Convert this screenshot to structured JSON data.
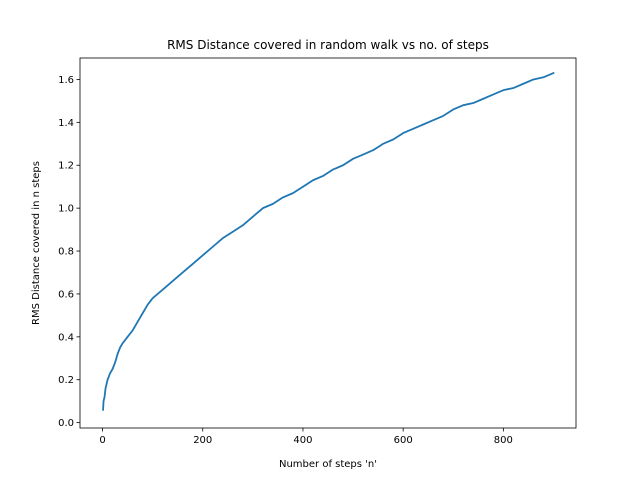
{
  "chart_data": {
    "type": "line",
    "title": "RMS Distance covered in random walk vs no. of steps",
    "xlabel": "Number of steps 'n'",
    "ylabel": "RMS Distance covered in n steps",
    "xlim": [
      -45,
      945
    ],
    "ylim": [
      -0.025,
      1.7
    ],
    "xticks": [
      0,
      200,
      400,
      600,
      800
    ],
    "xtick_labels": [
      "0",
      "200",
      "400",
      "600",
      "800"
    ],
    "yticks": [
      0.0,
      0.2,
      0.4,
      0.6,
      0.8,
      1.0,
      1.2,
      1.4,
      1.6
    ],
    "ytick_labels": [
      "0.0",
      "0.2",
      "0.4",
      "0.6",
      "0.8",
      "1.0",
      "1.2",
      "1.4",
      "1.6"
    ],
    "grid": false,
    "series": [
      {
        "color": "#1f77b4",
        "x": [
          1,
          2,
          4,
          6,
          10,
          15,
          20,
          25,
          30,
          35,
          40,
          50,
          60,
          70,
          80,
          90,
          100,
          120,
          140,
          160,
          180,
          200,
          220,
          240,
          260,
          280,
          300,
          320,
          340,
          360,
          380,
          400,
          420,
          440,
          460,
          480,
          500,
          520,
          540,
          560,
          580,
          600,
          620,
          640,
          660,
          680,
          700,
          720,
          740,
          760,
          780,
          800,
          820,
          840,
          860,
          880,
          900
        ],
        "y": [
          0.06,
          0.1,
          0.12,
          0.16,
          0.2,
          0.23,
          0.25,
          0.28,
          0.32,
          0.35,
          0.37,
          0.4,
          0.43,
          0.47,
          0.51,
          0.55,
          0.58,
          0.62,
          0.66,
          0.7,
          0.74,
          0.78,
          0.82,
          0.86,
          0.89,
          0.92,
          0.96,
          1.0,
          1.02,
          1.05,
          1.07,
          1.1,
          1.13,
          1.15,
          1.18,
          1.2,
          1.23,
          1.25,
          1.27,
          1.3,
          1.32,
          1.35,
          1.37,
          1.39,
          1.41,
          1.43,
          1.46,
          1.48,
          1.49,
          1.51,
          1.53,
          1.55,
          1.56,
          1.58,
          1.6,
          1.61,
          1.63
        ]
      }
    ]
  }
}
